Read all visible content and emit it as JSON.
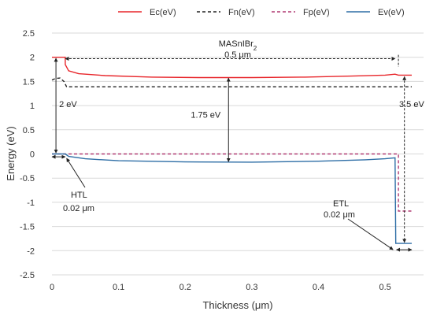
{
  "chart_data": {
    "type": "line",
    "xlabel": "Thickness (μm)",
    "ylabel": "Energy (eV)",
    "xlim": [
      0,
      0.54
    ],
    "ylim": [
      -2.5,
      2.5
    ],
    "x_ticks": [
      0,
      0.1,
      0.2,
      0.3,
      0.4,
      0.5
    ],
    "x_tick_labels": [
      "0",
      "0.1",
      "0.2",
      "0.3",
      "0.4",
      "0.5"
    ],
    "y_ticks": [
      2.5,
      2,
      1.5,
      1,
      0.5,
      0,
      -0.5,
      -1,
      -1.5,
      -2,
      -2.5
    ],
    "y_tick_labels": [
      "2.5",
      "2",
      "1.5",
      "1",
      "0.5",
      "0",
      "-0.5",
      "-1",
      "-1.5",
      "-2",
      "-2.5"
    ],
    "grid": "horizontal",
    "legend_position": "top",
    "series": [
      {
        "name": "Ec(eV)",
        "color": "#e8262b",
        "dash": "solid",
        "points": [
          [
            0,
            2.0
          ],
          [
            0.02,
            2.0
          ],
          [
            0.02,
            1.85
          ],
          [
            0.025,
            1.72
          ],
          [
            0.04,
            1.66
          ],
          [
            0.08,
            1.62
          ],
          [
            0.15,
            1.59
          ],
          [
            0.22,
            1.58
          ],
          [
            0.3,
            1.58
          ],
          [
            0.38,
            1.59
          ],
          [
            0.45,
            1.61
          ],
          [
            0.5,
            1.63
          ],
          [
            0.515,
            1.65
          ],
          [
            0.52,
            1.63
          ],
          [
            0.54,
            1.63
          ]
        ]
      },
      {
        "name": "Fn(eV)",
        "color": "#222222",
        "dash": "dashed",
        "points": [
          [
            0,
            1.53
          ],
          [
            0.005,
            1.56
          ],
          [
            0.012,
            1.57
          ],
          [
            0.018,
            1.5
          ],
          [
            0.022,
            1.39
          ],
          [
            0.54,
            1.39
          ]
        ]
      },
      {
        "name": "Fp(eV)",
        "color": "#b03a72",
        "dash": "dashed",
        "points": [
          [
            0,
            0.0
          ],
          [
            0.52,
            0.0
          ],
          [
            0.52,
            -1.18
          ],
          [
            0.54,
            -1.18
          ]
        ]
      },
      {
        "name": "Ev(eV)",
        "color": "#2e6ea6",
        "dash": "solid",
        "points": [
          [
            0,
            0.0
          ],
          [
            0.02,
            0.0
          ],
          [
            0.025,
            -0.05
          ],
          [
            0.05,
            -0.1
          ],
          [
            0.1,
            -0.14
          ],
          [
            0.2,
            -0.165
          ],
          [
            0.3,
            -0.17
          ],
          [
            0.4,
            -0.15
          ],
          [
            0.47,
            -0.12
          ],
          [
            0.5,
            -0.1
          ],
          [
            0.515,
            -0.08
          ],
          [
            0.516,
            -1.85
          ],
          [
            0.54,
            -1.85
          ]
        ]
      }
    ],
    "annotations": {
      "material_label": "MASnIBr",
      "material_subscript": "2",
      "absorber_thickness": "0.5 μm",
      "htl_gap": "2 eV",
      "absorber_gap": "1.75 eV",
      "etl_gap": "3.5 eV",
      "htl_name": "HTL",
      "htl_thickness": "0.02 μm",
      "etl_name": "ETL",
      "etl_thickness": "0.02 μm"
    }
  }
}
